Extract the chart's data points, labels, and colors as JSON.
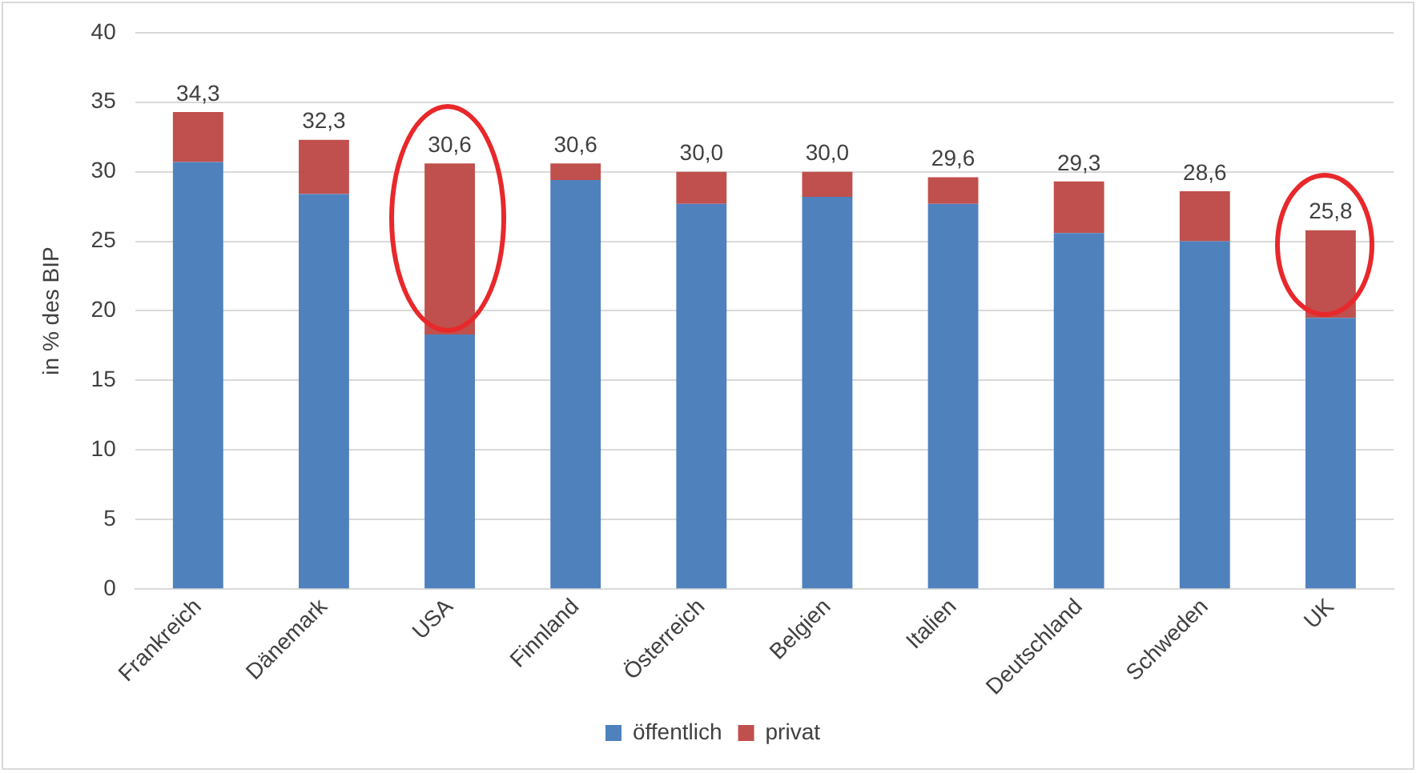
{
  "chart_data": {
    "type": "bar",
    "stacked": true,
    "ylabel": "in % des BIP",
    "categories": [
      "Frankreich",
      "Dänemark",
      "USA",
      "Finnland",
      "Österreich",
      "Belgien",
      "Italien",
      "Deutschland",
      "Schweden",
      "UK"
    ],
    "series": [
      {
        "name": "öffentlich",
        "color": "#4f81bd",
        "values": [
          30.7,
          28.4,
          18.3,
          29.4,
          27.7,
          28.2,
          27.7,
          25.6,
          25.0,
          19.5
        ]
      },
      {
        "name": "privat",
        "color": "#c0504d",
        "values": [
          3.6,
          3.9,
          12.3,
          1.2,
          2.3,
          1.8,
          1.9,
          3.7,
          3.6,
          6.3
        ]
      }
    ],
    "totals": [
      "34,3",
      "32,3",
      "30,6",
      "30,6",
      "30,0",
      "30,0",
      "29,6",
      "29,3",
      "28,6",
      "25,8"
    ],
    "ylim": [
      0,
      40
    ],
    "yticks": [
      0,
      5,
      10,
      15,
      20,
      25,
      30,
      35,
      40
    ],
    "grid": "y",
    "legend": "bottom"
  }
}
